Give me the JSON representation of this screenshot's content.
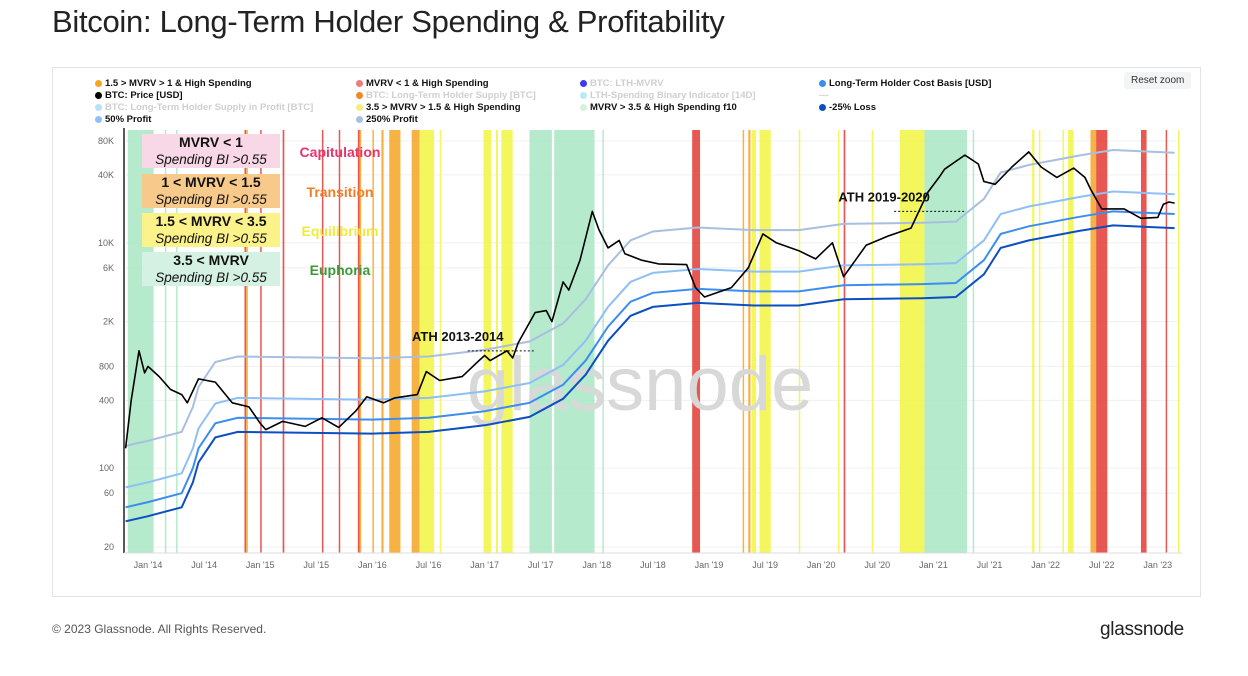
{
  "title": "Bitcoin: Long-Term Holder Spending & Profitability",
  "reset_zoom": "Reset zoom",
  "footer": "© 2023 Glassnode. All Rights Reserved.",
  "brand": "glassnode",
  "watermark": "glassnode",
  "legend": [
    {
      "label": "1.5 > MVRV > 1 & High Spending",
      "color": "#f5a623",
      "faded": false
    },
    {
      "label": "MVRV < 1 & High Spending",
      "color": "#ef7b7b",
      "faded": false
    },
    {
      "label": "BTC: LTH-MVRV",
      "color": "#3a3af0",
      "faded": true
    },
    {
      "label": "Long-Term Holder Cost Basis [USD]",
      "color": "#3b8ef0",
      "faded": false
    },
    {
      "label": "BTC: Price [USD]",
      "color": "#000000",
      "faded": false
    },
    {
      "label": "BTC: Long-Term Holder Supply [BTC]",
      "color": "#f0882a",
      "faded": true
    },
    {
      "label": "LTH-Spending Binary Indicator [14D]",
      "color": "#b8ecf5",
      "faded": true
    },
    {
      "label": "---",
      "color": "",
      "faded": true
    },
    {
      "label": "BTC: Long-Term Holder Supply in Profit [BTC]",
      "color": "#b8e0f8",
      "faded": true
    },
    {
      "label": "3.5 > MVRV > 1.5 & High Spending",
      "color": "#f5f07a",
      "faded": false
    },
    {
      "label": "MVRV > 3.5 & High Spending f10",
      "color": "#d5f2e0",
      "faded": false
    },
    {
      "label": "-25% Loss",
      "color": "#0b4fc0",
      "faded": false
    },
    {
      "label": "50% Profit",
      "color": "#8ec0f5",
      "faded": false
    },
    {
      "label": "250% Profit",
      "color": "#a9bfdf",
      "faded": false
    }
  ],
  "boxes": [
    {
      "title": "MVRV < 1",
      "sub": "Spending BI >0.55",
      "phase": "Capitulation",
      "bg": "#f8d7e6",
      "color": "#e8336b"
    },
    {
      "title": "1 < MVRV < 1.5",
      "sub": "Spending BI >0.55",
      "phase": "Transition",
      "bg": "#f7c98a",
      "color": "#f07d2a"
    },
    {
      "title": "1.5 < MVRV < 3.5",
      "sub": "Spending BI >0.55",
      "phase": "Equilibrium",
      "bg": "#fbf28a",
      "color": "#f2ea3a"
    },
    {
      "title": "3.5 < MVRV",
      "sub": "Spending BI >0.55",
      "phase": "Euphoria",
      "bg": "#d5f1e3",
      "color": "#3a9a3a"
    }
  ],
  "chart_data": {
    "type": "line",
    "title": "Bitcoin: Long-Term Holder Spending & Profitability",
    "y_scale": "log",
    "ylim": [
      20,
      100000
    ],
    "y_ticks": [
      {
        "v": 80000,
        "label": "80K"
      },
      {
        "v": 40000,
        "label": "40K"
      },
      {
        "v": 10000,
        "label": "10K"
      },
      {
        "v": 6000,
        "label": "6K"
      },
      {
        "v": 2000,
        "label": "2K"
      },
      {
        "v": 800,
        "label": "800"
      },
      {
        "v": 400,
        "label": "400"
      },
      {
        "v": 100,
        "label": "100"
      },
      {
        "v": 60,
        "label": "60"
      },
      {
        "v": 20,
        "label": "20"
      }
    ],
    "x_ticks": [
      {
        "v": 2014.0,
        "label": "Jan '14"
      },
      {
        "v": 2014.5,
        "label": "Jul '14"
      },
      {
        "v": 2015.0,
        "label": "Jan '15"
      },
      {
        "v": 2015.5,
        "label": "Jul '15"
      },
      {
        "v": 2016.0,
        "label": "Jan '16"
      },
      {
        "v": 2016.5,
        "label": "Jul '16"
      },
      {
        "v": 2017.0,
        "label": "Jan '17"
      },
      {
        "v": 2017.5,
        "label": "Jul '17"
      },
      {
        "v": 2018.0,
        "label": "Jan '18"
      },
      {
        "v": 2018.5,
        "label": "Jul '18"
      },
      {
        "v": 2019.0,
        "label": "Jan '19"
      },
      {
        "v": 2019.5,
        "label": "Jul '19"
      },
      {
        "v": 2020.0,
        "label": "Jan '20"
      },
      {
        "v": 2020.5,
        "label": "Jul '20"
      },
      {
        "v": 2021.0,
        "label": "Jan '21"
      },
      {
        "v": 2021.5,
        "label": "Jul '21"
      },
      {
        "v": 2022.0,
        "label": "Jan '22"
      },
      {
        "v": 2022.5,
        "label": "Jul '22"
      },
      {
        "v": 2023.0,
        "label": "Jan '23"
      }
    ],
    "xlim": [
      2013.8,
      2023.2
    ],
    "price": {
      "name": "BTC: Price [USD]",
      "color": "#000000",
      "points": [
        [
          2013.8,
          150
        ],
        [
          2013.85,
          400
        ],
        [
          2013.92,
          1100
        ],
        [
          2013.97,
          700
        ],
        [
          2014.0,
          800
        ],
        [
          2014.1,
          650
        ],
        [
          2014.2,
          500
        ],
        [
          2014.3,
          450
        ],
        [
          2014.35,
          380
        ],
        [
          2014.45,
          620
        ],
        [
          2014.6,
          580
        ],
        [
          2014.75,
          380
        ],
        [
          2014.9,
          350
        ],
        [
          2015.0,
          250
        ],
        [
          2015.05,
          220
        ],
        [
          2015.2,
          260
        ],
        [
          2015.4,
          235
        ],
        [
          2015.55,
          280
        ],
        [
          2015.7,
          230
        ],
        [
          2015.85,
          320
        ],
        [
          2015.95,
          430
        ],
        [
          2016.1,
          380
        ],
        [
          2016.2,
          420
        ],
        [
          2016.4,
          450
        ],
        [
          2016.48,
          720
        ],
        [
          2016.6,
          600
        ],
        [
          2016.8,
          650
        ],
        [
          2016.95,
          900
        ],
        [
          2017.0,
          1000
        ],
        [
          2017.05,
          900
        ],
        [
          2017.2,
          1100
        ],
        [
          2017.25,
          950
        ],
        [
          2017.3,
          1300
        ],
        [
          2017.45,
          2400
        ],
        [
          2017.55,
          2500
        ],
        [
          2017.6,
          2000
        ],
        [
          2017.7,
          4500
        ],
        [
          2017.75,
          3800
        ],
        [
          2017.85,
          7000
        ],
        [
          2017.96,
          19000
        ],
        [
          2018.02,
          13000
        ],
        [
          2018.1,
          9000
        ],
        [
          2018.2,
          10500
        ],
        [
          2018.25,
          8000
        ],
        [
          2018.4,
          7000
        ],
        [
          2018.55,
          6500
        ],
        [
          2018.8,
          6400
        ],
        [
          2018.88,
          4000
        ],
        [
          2018.96,
          3300
        ],
        [
          2019.2,
          4000
        ],
        [
          2019.35,
          6000
        ],
        [
          2019.48,
          12000
        ],
        [
          2019.6,
          10000
        ],
        [
          2019.8,
          8500
        ],
        [
          2019.95,
          7200
        ],
        [
          2020.1,
          10000
        ],
        [
          2020.2,
          5000
        ],
        [
          2020.4,
          9500
        ],
        [
          2020.6,
          11500
        ],
        [
          2020.8,
          13500
        ],
        [
          2020.95,
          28000
        ],
        [
          2021.05,
          38000
        ],
        [
          2021.1,
          45000
        ],
        [
          2021.28,
          60000
        ],
        [
          2021.4,
          50000
        ],
        [
          2021.45,
          35000
        ],
        [
          2021.55,
          33000
        ],
        [
          2021.7,
          47000
        ],
        [
          2021.85,
          64000
        ],
        [
          2021.96,
          47000
        ],
        [
          2022.1,
          38000
        ],
        [
          2022.25,
          46000
        ],
        [
          2022.35,
          38000
        ],
        [
          2022.4,
          30000
        ],
        [
          2022.5,
          20000
        ],
        [
          2022.7,
          20000
        ],
        [
          2022.85,
          16500
        ],
        [
          2023.0,
          16800
        ],
        [
          2023.05,
          22000
        ],
        [
          2023.1,
          23000
        ],
        [
          2023.15,
          22500
        ]
      ]
    },
    "cost_basis": {
      "name": "Long-Term Holder Cost Basis [USD]",
      "color": "#3b8ef0",
      "points": [
        [
          2013.8,
          45
        ],
        [
          2014.0,
          50
        ],
        [
          2014.3,
          60
        ],
        [
          2014.4,
          100
        ],
        [
          2014.45,
          150
        ],
        [
          2014.6,
          250
        ],
        [
          2014.8,
          280
        ],
        [
          2016.0,
          270
        ],
        [
          2016.5,
          280
        ],
        [
          2017.0,
          320
        ],
        [
          2017.4,
          380
        ],
        [
          2017.7,
          550
        ],
        [
          2017.9,
          900
        ],
        [
          2018.1,
          1800
        ],
        [
          2018.3,
          3000
        ],
        [
          2018.5,
          3600
        ],
        [
          2018.9,
          3900
        ],
        [
          2019.4,
          3700
        ],
        [
          2019.8,
          3700
        ],
        [
          2020.2,
          4200
        ],
        [
          2020.9,
          4300
        ],
        [
          2021.2,
          4400
        ],
        [
          2021.45,
          7000
        ],
        [
          2021.6,
          12000
        ],
        [
          2021.85,
          14000
        ],
        [
          2022.3,
          17000
        ],
        [
          2022.6,
          19000
        ],
        [
          2023.15,
          18000
        ]
      ]
    },
    "bands_multipliers": [
      {
        "name": "250% Profit",
        "mult": 3.5,
        "color": "#a9bfdf"
      },
      {
        "name": "50% Profit",
        "mult": 1.5,
        "color": "#8ec0f5"
      },
      {
        "name": "-25% Loss",
        "mult": 0.75,
        "color": "#0b4fc0"
      }
    ],
    "regimes": {
      "capitulation": {
        "color": "#e53935",
        "ranges": [
          [
            2014.86,
            2014.875
          ],
          [
            2015.0,
            2015.008
          ],
          [
            2015.2,
            2015.215
          ],
          [
            2015.55,
            2015.56
          ],
          [
            2015.7,
            2015.71
          ],
          [
            2015.87,
            2015.885
          ],
          [
            2018.85,
            2018.92
          ],
          [
            2020.2,
            2020.215
          ],
          [
            2022.45,
            2022.55
          ],
          [
            2022.85,
            2022.9
          ],
          [
            2023.07,
            2023.08
          ]
        ]
      },
      "transition": {
        "color": "#f5a623",
        "ranges": [
          [
            2014.875,
            2014.89
          ],
          [
            2015.885,
            2015.9
          ],
          [
            2016.0,
            2016.01
          ],
          [
            2016.08,
            2016.1
          ],
          [
            2016.15,
            2016.25
          ],
          [
            2016.35,
            2016.42
          ],
          [
            2019.3,
            2019.31
          ],
          [
            2019.35,
            2019.37
          ],
          [
            2022.4,
            2022.45
          ]
        ]
      },
      "equilibrium": {
        "color": "#f2f542",
        "ranges": [
          [
            2016.42,
            2016.55
          ],
          [
            2016.6,
            2016.61
          ],
          [
            2016.99,
            2017.06
          ],
          [
            2017.1,
            2017.12
          ],
          [
            2017.15,
            2017.25
          ],
          [
            2019.38,
            2019.42
          ],
          [
            2019.45,
            2019.55
          ],
          [
            2019.8,
            2019.81
          ],
          [
            2020.15,
            2020.16
          ],
          [
            2020.45,
            2020.46
          ],
          [
            2020.7,
            2020.92
          ],
          [
            2021.88,
            2021.9
          ],
          [
            2021.94,
            2021.95
          ],
          [
            2022.15,
            2022.16
          ],
          [
            2022.2,
            2022.25
          ],
          [
            2023.18,
            2023.19
          ]
        ]
      },
      "euphoria": {
        "color": "#a8e6c4",
        "ranges": [
          [
            2013.82,
            2014.05
          ],
          [
            2014.15,
            2014.16
          ],
          [
            2014.25,
            2014.26
          ],
          [
            2017.4,
            2017.6
          ],
          [
            2017.62,
            2017.98
          ],
          [
            2018.05,
            2018.06
          ],
          [
            2020.92,
            2021.3
          ],
          [
            2021.35,
            2021.36
          ]
        ]
      }
    },
    "annotations": [
      {
        "label": "ATH 2013-2014",
        "x_start": 2016.85,
        "x_end": 2017.45,
        "value": 1100
      },
      {
        "label": "ATH 2019-2020",
        "x_start": 2020.65,
        "x_end": 2021.28,
        "value": 19000
      }
    ]
  }
}
